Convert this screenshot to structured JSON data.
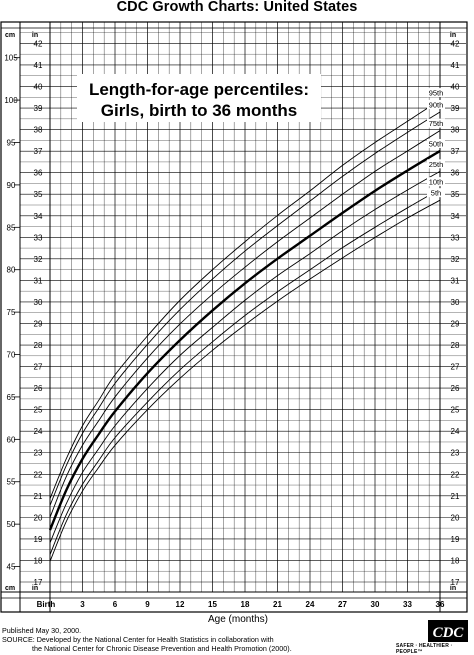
{
  "header": {
    "title": "CDC Growth Charts: United States"
  },
  "chart_data": {
    "type": "line",
    "title_lines": [
      "Length-for-age percentiles:",
      "Girls, birth to 36 months"
    ],
    "xlabel": "Age (months)",
    "x_tick_labels": [
      {
        "x": 0,
        "label": "Birth"
      },
      {
        "x": 3,
        "label": "3"
      },
      {
        "x": 6,
        "label": "6"
      },
      {
        "x": 9,
        "label": "9"
      },
      {
        "x": 12,
        "label": "12"
      },
      {
        "x": 15,
        "label": "15"
      },
      {
        "x": 18,
        "label": "18"
      },
      {
        "x": 21,
        "label": "21"
      },
      {
        "x": 24,
        "label": "24"
      },
      {
        "x": 27,
        "label": "27"
      },
      {
        "x": 30,
        "label": "30"
      },
      {
        "x": 33,
        "label": "33"
      },
      {
        "x": 36,
        "label": "36"
      }
    ],
    "xlim": [
      0,
      36
    ],
    "cm_unit_label": "cm",
    "in_unit_label": "in",
    "ylim_cm": [
      42,
      108.5
    ],
    "cm_ticks": [
      45,
      50,
      55,
      60,
      65,
      70,
      75,
      80,
      85,
      90,
      95,
      100,
      105
    ],
    "in_ticks": [
      17,
      18,
      19,
      20,
      21,
      22,
      23,
      24,
      25,
      26,
      27,
      28,
      29,
      30,
      31,
      32,
      33,
      34,
      35,
      36,
      37,
      38,
      39,
      40,
      41,
      42
    ],
    "grid": true,
    "x": [
      0,
      1.5,
      3,
      4.5,
      6,
      9,
      12,
      15,
      18,
      21,
      24,
      27,
      30,
      33,
      36
    ],
    "series": [
      {
        "name": "95th",
        "values": [
          53.0,
          57.7,
          61.6,
          64.6,
          67.6,
          72.2,
          76.4,
          80.0,
          83.3,
          86.4,
          89.3,
          92.3,
          95.0,
          97.5,
          100.0
        ],
        "weight": "normal"
      },
      {
        "name": "90th",
        "values": [
          52.2,
          56.9,
          60.7,
          63.7,
          66.6,
          71.2,
          75.3,
          78.9,
          82.2,
          85.2,
          88.1,
          91.0,
          93.7,
          96.2,
          98.6
        ],
        "weight": "normal"
      },
      {
        "name": "75th",
        "values": [
          50.8,
          55.6,
          59.3,
          62.2,
          65.0,
          69.6,
          73.6,
          77.1,
          80.3,
          83.3,
          86.1,
          88.9,
          91.6,
          94.0,
          96.4
        ],
        "weight": "normal"
      },
      {
        "name": "50th",
        "values": [
          49.3,
          54.0,
          57.7,
          60.6,
          63.3,
          67.8,
          71.7,
          75.2,
          78.4,
          81.3,
          84.0,
          86.7,
          89.3,
          91.7,
          94.0
        ],
        "weight": "bold"
      },
      {
        "name": "25th",
        "values": [
          47.8,
          52.4,
          56.1,
          58.9,
          61.6,
          66.0,
          69.9,
          73.2,
          76.4,
          79.3,
          81.9,
          84.6,
          87.1,
          89.4,
          91.6
        ],
        "weight": "normal"
      },
      {
        "name": "10th",
        "values": [
          46.4,
          51.1,
          54.7,
          57.5,
          60.2,
          64.4,
          68.2,
          71.5,
          74.6,
          77.4,
          80.0,
          82.6,
          85.0,
          87.3,
          89.5
        ],
        "weight": "normal"
      },
      {
        "name": "5th",
        "values": [
          45.6,
          50.3,
          53.9,
          56.7,
          59.3,
          63.5,
          67.2,
          70.5,
          73.5,
          76.3,
          78.9,
          81.4,
          83.8,
          86.1,
          88.2
        ],
        "weight": "normal"
      }
    ]
  },
  "footer": {
    "published": "Published May 30, 2000.",
    "source_line1": "SOURCE: Developed by the National Center for Health Statistics in collaboration with",
    "source_line2": "the National Center for Chronic Disease Prevention and Health Promotion (2000).",
    "logo_text": "CDC",
    "tagline": "SAFER · HEALTHIER · PEOPLE™"
  }
}
